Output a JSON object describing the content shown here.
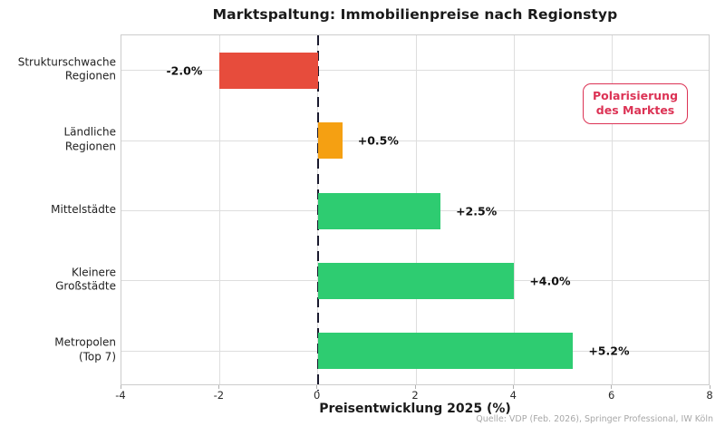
{
  "title": "Marktspaltung: Immobilienpreise nach Regionstyp",
  "chart_data": {
    "type": "bar",
    "orientation": "horizontal",
    "categories": [
      "Strukturschwache\nRegionen",
      "Ländliche\nRegionen",
      "Mittelstädte",
      "Kleinere\nGroßstädte",
      "Metropolen\n(Top 7)"
    ],
    "values": [
      -2.0,
      0.5,
      2.5,
      4.0,
      5.2
    ],
    "value_labels": [
      "-2.0%",
      "+0.5%",
      "+2.5%",
      "+4.0%",
      "+5.2%"
    ],
    "bar_colors": [
      "#e74c3c",
      "#f5a012",
      "#2ecc71",
      "#2ecc71",
      "#2ecc71"
    ],
    "title": "Marktspaltung: Immobilienpreise nach Regionstyp",
    "xlabel": "Preisentwicklung 2025 (%)",
    "ylabel": "",
    "xlim": [
      -4,
      8
    ],
    "xticks": [
      -4,
      -2,
      0,
      2,
      4,
      6,
      8
    ],
    "grid": true,
    "zero_line": true,
    "legend_position": "none",
    "annotation": {
      "text": "Polarisierung\ndes Marktes",
      "color": "#dc3355"
    },
    "source": "Quelle: VDP (Feb. 2026), Springer Professional, IW Köln"
  }
}
